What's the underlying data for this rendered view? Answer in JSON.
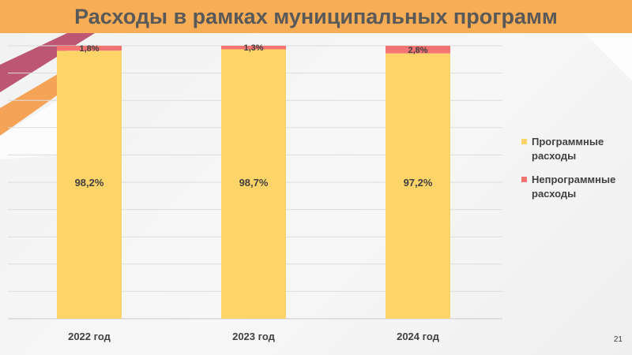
{
  "slide": {
    "title": "Расходы в рамках муниципальных программ",
    "page_number": "21"
  },
  "colors": {
    "title_bg": "#f6ad55",
    "program": "#fdd468",
    "nonprogram": "#f47373",
    "accent_red": "#b13a5a",
    "accent_orange": "#f59a45"
  },
  "chart_data": {
    "type": "bar",
    "stacked": true,
    "percent_stacked": true,
    "categories": [
      "2022 год",
      "2023 год",
      "2024 год"
    ],
    "series": [
      {
        "name": "Программные расходы",
        "color": "#fdd468",
        "values": [
          98.2,
          98.7,
          97.2
        ],
        "labels": [
          "98,2%",
          "98,7%",
          "97,2%"
        ]
      },
      {
        "name": "Непрограммные расходы",
        "color": "#f47373",
        "values": [
          1.8,
          1.3,
          2.8
        ],
        "labels": [
          "1,8%",
          "1,3%",
          "2,8%"
        ]
      }
    ],
    "ylim": [
      0,
      100
    ],
    "grid": true,
    "legend_position": "right"
  }
}
